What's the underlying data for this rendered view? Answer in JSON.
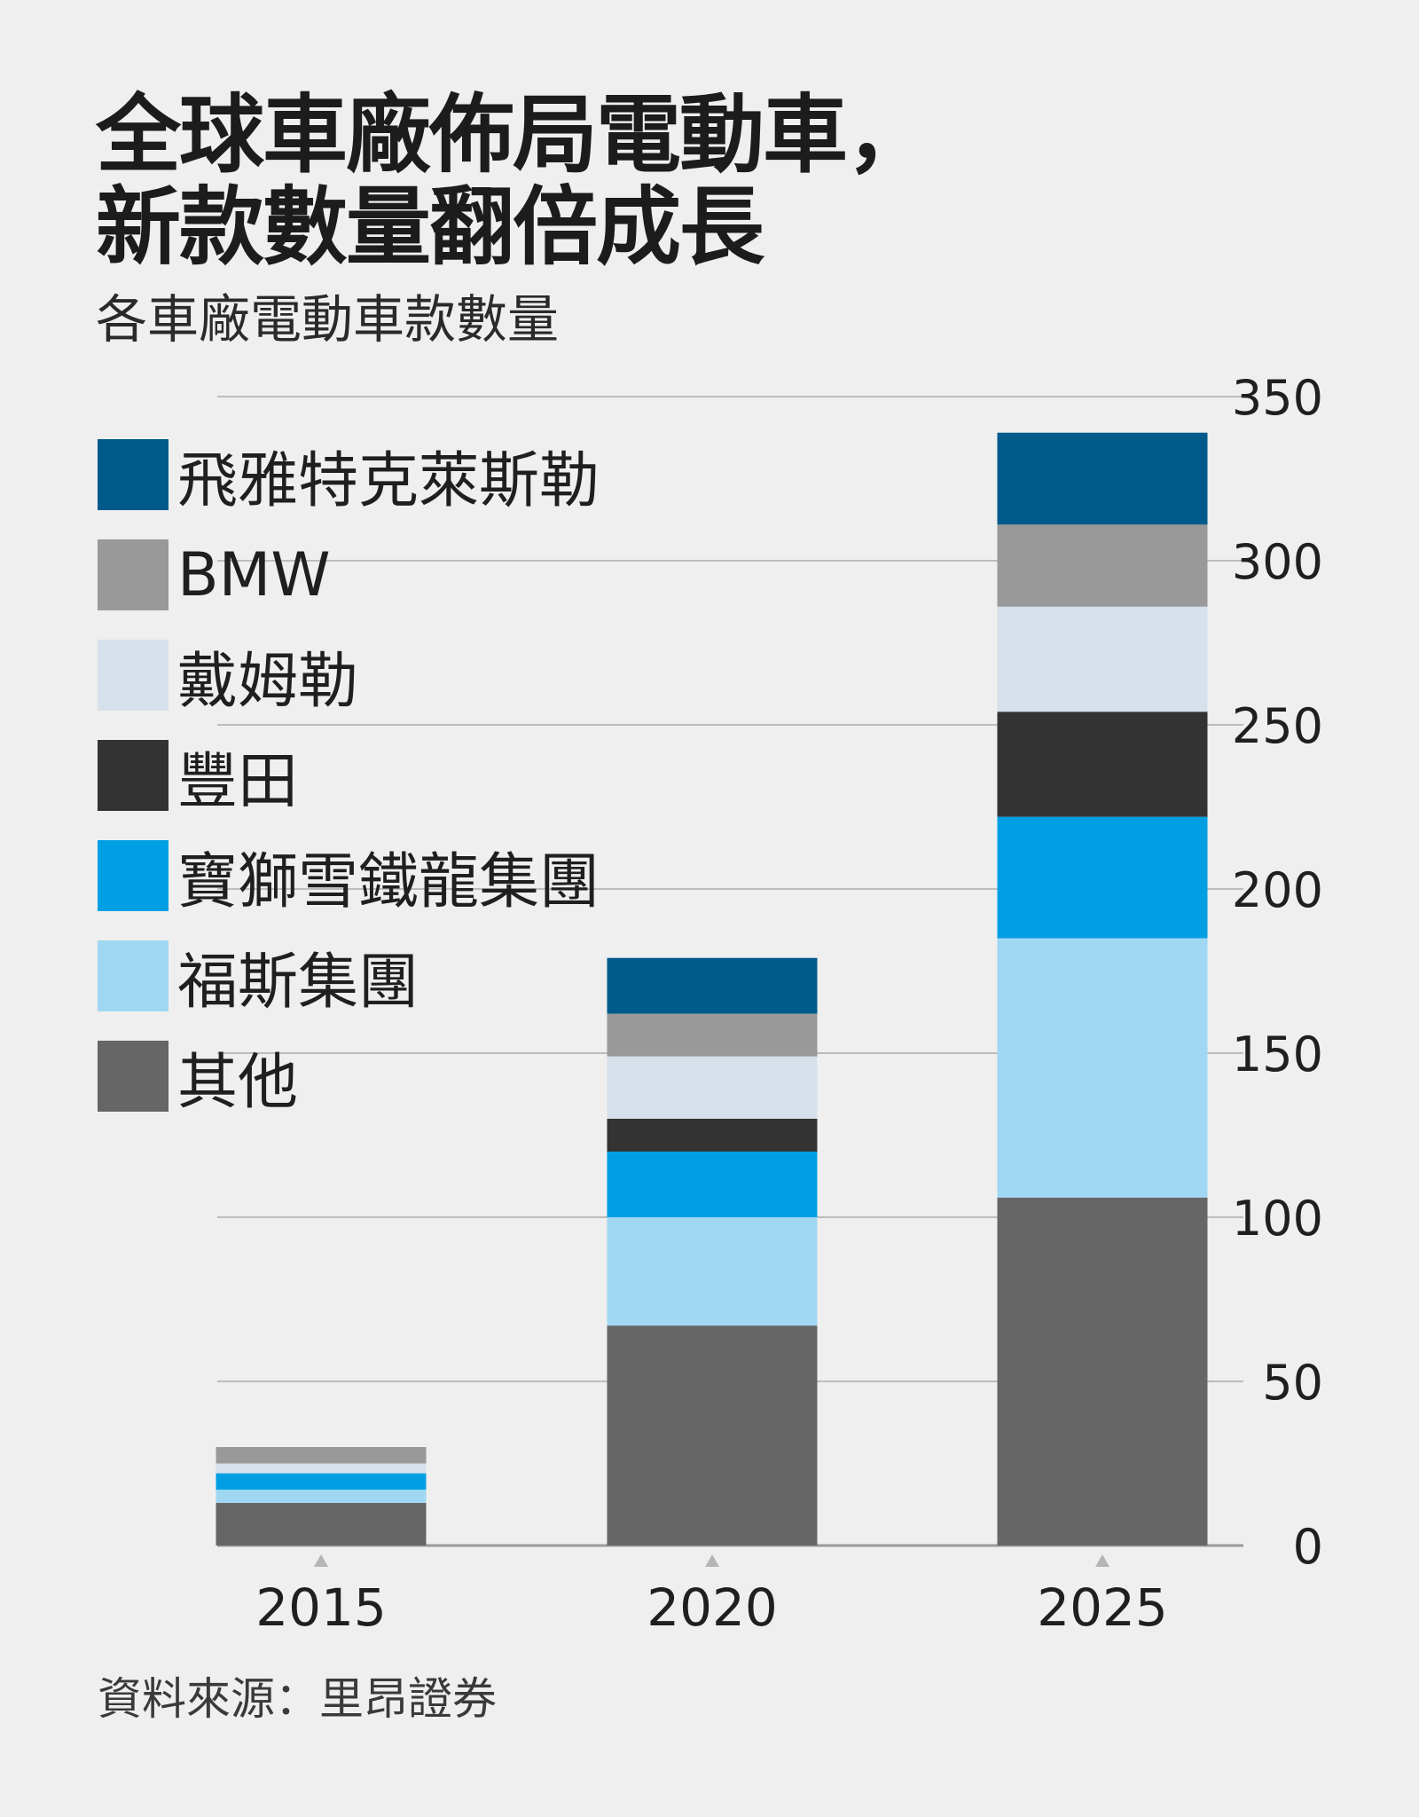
{
  "title_lines": [
    "全球車廠佈局電動車，",
    "新款數量翻倍成長"
  ],
  "subtitle": "各車廠電動車款數量",
  "source": "資料來源：里昂證券",
  "chart_data": {
    "type": "bar",
    "stacked": true,
    "categories": [
      "2015",
      "2020",
      "2025"
    ],
    "series": [
      {
        "name": "其他",
        "color": "#666666",
        "values": [
          13,
          67,
          106
        ]
      },
      {
        "name": "福斯集團",
        "color": "#a0d7f3",
        "values": [
          4,
          33,
          79
        ]
      },
      {
        "name": "寶獅雪鐵龍集團",
        "color": "#009fe3",
        "values": [
          5,
          20,
          37
        ]
      },
      {
        "name": "豐田",
        "color": "#333333",
        "values": [
          0,
          10,
          32
        ]
      },
      {
        "name": "戴姆勒",
        "color": "#d6e1eb",
        "values": [
          3,
          19,
          32
        ]
      },
      {
        "name": "BMW",
        "color": "#999999",
        "values": [
          5,
          13,
          25
        ]
      },
      {
        "name": "飛雅特克萊斯勒",
        "color": "#005a8c",
        "values": [
          0,
          17,
          28
        ]
      }
    ],
    "y_ticks": [
      "0",
      "50",
      "100",
      "150",
      "200",
      "250",
      "300",
      "350"
    ],
    "ylim": [
      0,
      350
    ],
    "grid": true,
    "y_axis_side": "right",
    "legend": [
      "飛雅特克萊斯勒",
      "BMW",
      "戴姆勒",
      "豐田",
      "寶獅雪鐵龍集團",
      "福斯集團",
      "其他"
    ],
    "legend_position": "top-left"
  }
}
